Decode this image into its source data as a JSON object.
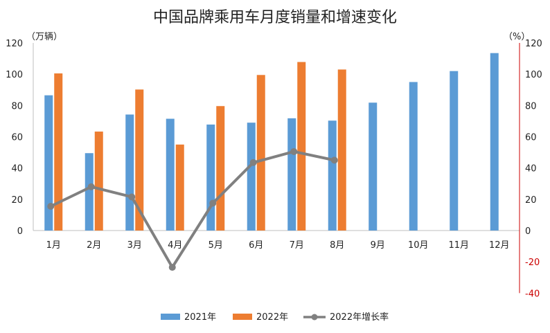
{
  "chart_data": {
    "type": "bar",
    "title": "中国品牌乘用车月度销量和增速变化",
    "left_unit": "（万辆）",
    "right_unit": "（%）",
    "categories": [
      "1月",
      "2月",
      "3月",
      "4月",
      "5月",
      "6月",
      "7月",
      "8月",
      "9月",
      "10月",
      "11月",
      "12月"
    ],
    "ylim_left": [
      0,
      120
    ],
    "ylim_right": [
      -40,
      120
    ],
    "left_ticks": [
      "0",
      "20",
      "40",
      "60",
      "80",
      "100",
      "120"
    ],
    "right_ticks": [
      "-40",
      "-20",
      "0",
      "20",
      "40",
      "60",
      "80",
      "100",
      "120"
    ],
    "series": [
      {
        "name": "2021年",
        "type": "bar",
        "axis": "left",
        "color": "#5B9BD5",
        "values": [
          86.5,
          49.5,
          74.2,
          71.5,
          67.8,
          69.0,
          71.8,
          70.3,
          81.8,
          95.0,
          102.0,
          113.5
        ]
      },
      {
        "name": "2022年",
        "type": "bar",
        "axis": "left",
        "color": "#ED7D31",
        "values": [
          100.5,
          63.3,
          90.2,
          55.0,
          79.6,
          99.5,
          107.8,
          103.0,
          null,
          null,
          null,
          null
        ]
      },
      {
        "name": "2022年增长率",
        "type": "line",
        "axis": "right",
        "color": "#808080",
        "values": [
          15.5,
          28.0,
          21.5,
          -23.5,
          17.5,
          43.5,
          50.5,
          45.0,
          null,
          null,
          null,
          null
        ]
      }
    ],
    "legend": "bottom",
    "grid": false
  },
  "colors": {
    "left_axis_color": "#222222",
    "right_axis_color": "#cc0000"
  }
}
